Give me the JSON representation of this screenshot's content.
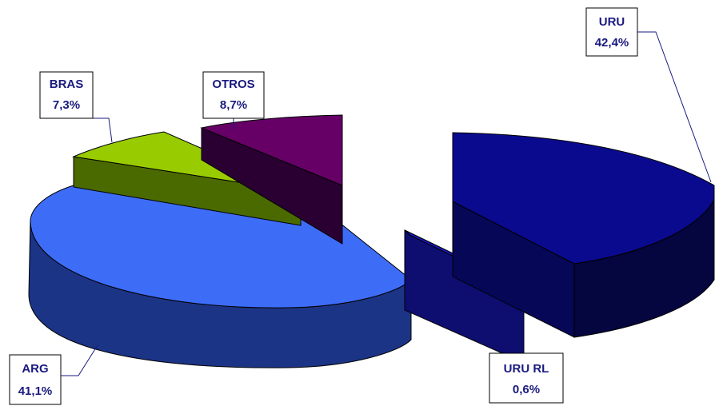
{
  "chart_data": {
    "type": "pie",
    "style": "3d-exploded",
    "title": "",
    "legend": "none",
    "slices": [
      {
        "name": "URU",
        "value": 42.4,
        "label": "42,4%",
        "color": "#0a0a8f"
      },
      {
        "name": "URU RL",
        "value": 0.6,
        "label": "0,6%",
        "color": "#1717c0"
      },
      {
        "name": "ARG",
        "value": 41.1,
        "label": "41,1%",
        "color": "#3d6cf7"
      },
      {
        "name": "BRAS",
        "value": 7.3,
        "label": "7,3%",
        "color": "#99cc00"
      },
      {
        "name": "OTROS",
        "value": 8.7,
        "label": "8,7%",
        "color": "#660066"
      }
    ]
  }
}
